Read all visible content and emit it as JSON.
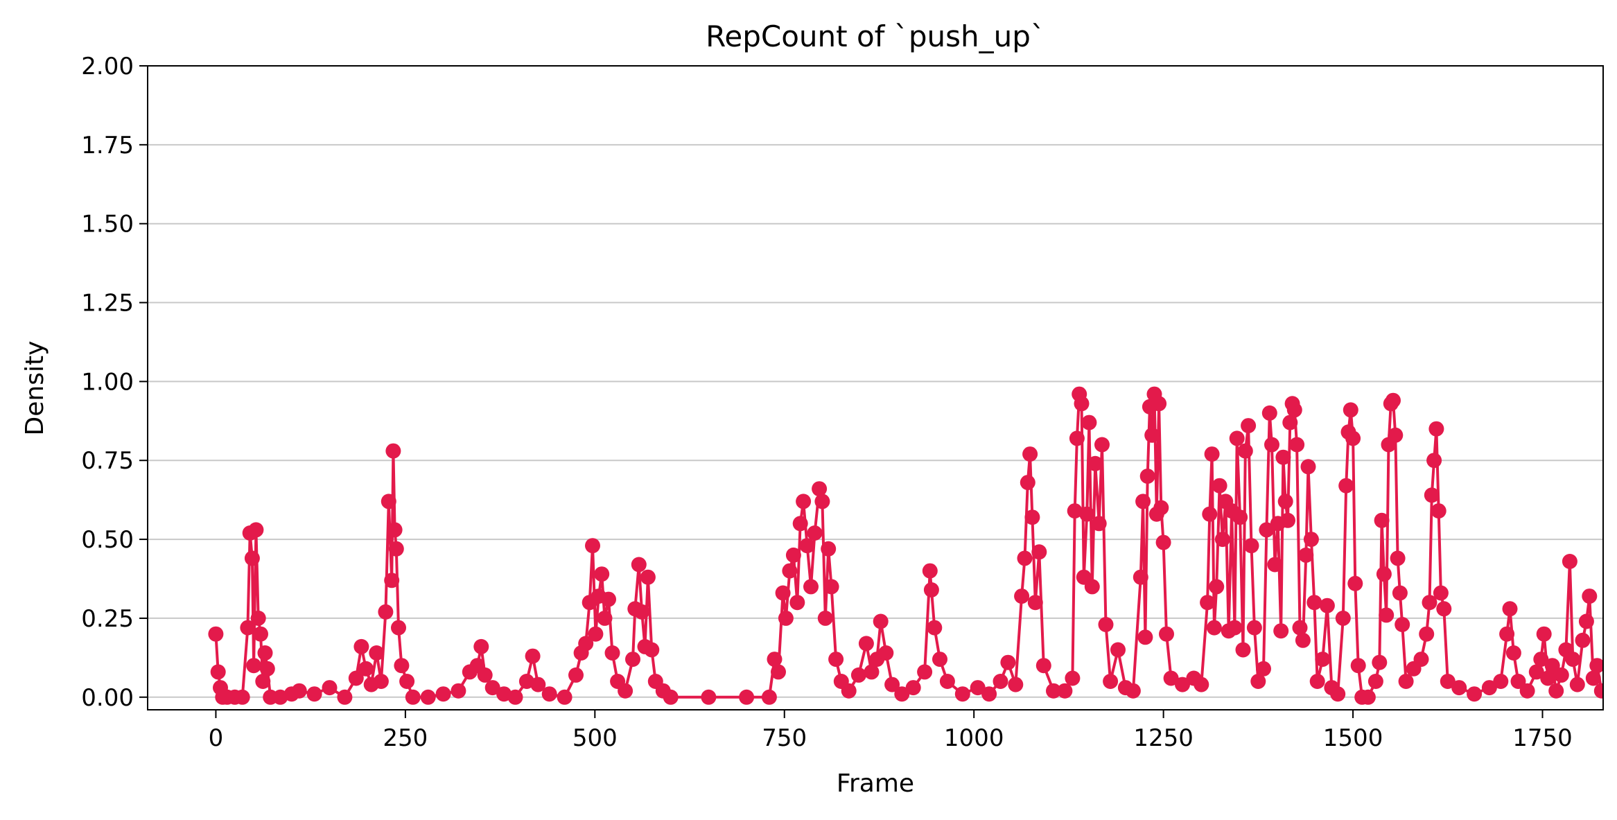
{
  "chart_data": {
    "type": "line",
    "title": "RepCount of `push_up`",
    "xlabel": "Frame",
    "ylabel": "Density",
    "xlim": [
      -90,
      1830
    ],
    "ylim": [
      -0.04,
      2.0
    ],
    "xticks": [
      0,
      250,
      500,
      750,
      1000,
      1250,
      1500,
      1750
    ],
    "xtick_labels": [
      "0",
      "250",
      "500",
      "750",
      "1000",
      "1250",
      "1500",
      "1750"
    ],
    "yticks": [
      0.0,
      0.25,
      0.5,
      0.75,
      1.0,
      1.25,
      1.5,
      1.75,
      2.0
    ],
    "ytick_labels": [
      "0.00",
      "0.25",
      "0.50",
      "0.75",
      "1.00",
      "1.25",
      "1.50",
      "1.75",
      "2.00"
    ],
    "grid": "y",
    "legend": "none",
    "series": [
      {
        "color": "#e31a4b",
        "marker": "circle",
        "points": [
          [
            0,
            0.2
          ],
          [
            3,
            0.08
          ],
          [
            6,
            0.03
          ],
          [
            9,
            0.0
          ],
          [
            15,
            0.0
          ],
          [
            25,
            0.0
          ],
          [
            35,
            0.0
          ],
          [
            42,
            0.22
          ],
          [
            45,
            0.52
          ],
          [
            48,
            0.44
          ],
          [
            50,
            0.1
          ],
          [
            53,
            0.53
          ],
          [
            56,
            0.25
          ],
          [
            59,
            0.2
          ],
          [
            62,
            0.05
          ],
          [
            65,
            0.14
          ],
          [
            68,
            0.09
          ],
          [
            72,
            0.0
          ],
          [
            85,
            0.0
          ],
          [
            100,
            0.01
          ],
          [
            110,
            0.02
          ],
          [
            130,
            0.01
          ],
          [
            150,
            0.03
          ],
          [
            170,
            0.0
          ],
          [
            185,
            0.06
          ],
          [
            192,
            0.16
          ],
          [
            198,
            0.09
          ],
          [
            205,
            0.04
          ],
          [
            212,
            0.14
          ],
          [
            218,
            0.05
          ],
          [
            224,
            0.27
          ],
          [
            228,
            0.62
          ],
          [
            232,
            0.37
          ],
          [
            234,
            0.78
          ],
          [
            236,
            0.53
          ],
          [
            238,
            0.47
          ],
          [
            241,
            0.22
          ],
          [
            245,
            0.1
          ],
          [
            252,
            0.05
          ],
          [
            260,
            0.0
          ],
          [
            280,
            0.0
          ],
          [
            300,
            0.01
          ],
          [
            320,
            0.02
          ],
          [
            335,
            0.08
          ],
          [
            345,
            0.1
          ],
          [
            350,
            0.16
          ],
          [
            355,
            0.07
          ],
          [
            365,
            0.03
          ],
          [
            380,
            0.01
          ],
          [
            395,
            0.0
          ],
          [
            410,
            0.05
          ],
          [
            418,
            0.13
          ],
          [
            425,
            0.04
          ],
          [
            440,
            0.01
          ],
          [
            460,
            0.0
          ],
          [
            475,
            0.07
          ],
          [
            482,
            0.14
          ],
          [
            488,
            0.17
          ],
          [
            493,
            0.3
          ],
          [
            497,
            0.48
          ],
          [
            501,
            0.2
          ],
          [
            505,
            0.32
          ],
          [
            509,
            0.39
          ],
          [
            513,
            0.25
          ],
          [
            518,
            0.31
          ],
          [
            523,
            0.14
          ],
          [
            530,
            0.05
          ],
          [
            540,
            0.02
          ],
          [
            550,
            0.12
          ],
          [
            553,
            0.28
          ],
          [
            558,
            0.42
          ],
          [
            562,
            0.27
          ],
          [
            566,
            0.16
          ],
          [
            570,
            0.38
          ],
          [
            575,
            0.15
          ],
          [
            580,
            0.05
          ],
          [
            590,
            0.02
          ],
          [
            600,
            0.0
          ],
          [
            650,
            0.0
          ],
          [
            700,
            0.0
          ],
          [
            730,
            0.0
          ],
          [
            737,
            0.12
          ],
          [
            742,
            0.08
          ],
          [
            748,
            0.33
          ],
          [
            752,
            0.25
          ],
          [
            757,
            0.4
          ],
          [
            762,
            0.45
          ],
          [
            767,
            0.3
          ],
          [
            771,
            0.55
          ],
          [
            775,
            0.62
          ],
          [
            780,
            0.48
          ],
          [
            785,
            0.35
          ],
          [
            790,
            0.52
          ],
          [
            796,
            0.66
          ],
          [
            800,
            0.62
          ],
          [
            804,
            0.25
          ],
          [
            808,
            0.47
          ],
          [
            812,
            0.35
          ],
          [
            818,
            0.12
          ],
          [
            825,
            0.05
          ],
          [
            835,
            0.02
          ],
          [
            848,
            0.07
          ],
          [
            858,
            0.17
          ],
          [
            865,
            0.08
          ],
          [
            872,
            0.12
          ],
          [
            877,
            0.24
          ],
          [
            884,
            0.14
          ],
          [
            892,
            0.04
          ],
          [
            905,
            0.01
          ],
          [
            920,
            0.03
          ],
          [
            935,
            0.08
          ],
          [
            942,
            0.4
          ],
          [
            944,
            0.34
          ],
          [
            948,
            0.22
          ],
          [
            955,
            0.12
          ],
          [
            965,
            0.05
          ],
          [
            985,
            0.01
          ],
          [
            1005,
            0.03
          ],
          [
            1020,
            0.01
          ],
          [
            1035,
            0.05
          ],
          [
            1045,
            0.11
          ],
          [
            1055,
            0.04
          ],
          [
            1063,
            0.32
          ],
          [
            1067,
            0.44
          ],
          [
            1071,
            0.68
          ],
          [
            1074,
            0.77
          ],
          [
            1077,
            0.57
          ],
          [
            1081,
            0.3
          ],
          [
            1086,
            0.46
          ],
          [
            1092,
            0.1
          ],
          [
            1105,
            0.02
          ],
          [
            1120,
            0.02
          ],
          [
            1130,
            0.06
          ],
          [
            1133,
            0.59
          ],
          [
            1136,
            0.82
          ],
          [
            1139,
            0.96
          ],
          [
            1142,
            0.93
          ],
          [
            1145,
            0.38
          ],
          [
            1149,
            0.58
          ],
          [
            1152,
            0.87
          ],
          [
            1156,
            0.35
          ],
          [
            1160,
            0.74
          ],
          [
            1165,
            0.55
          ],
          [
            1169,
            0.8
          ],
          [
            1174,
            0.23
          ],
          [
            1180,
            0.05
          ],
          [
            1190,
            0.15
          ],
          [
            1200,
            0.03
          ],
          [
            1210,
            0.02
          ],
          [
            1220,
            0.38
          ],
          [
            1223,
            0.62
          ],
          [
            1226,
            0.19
          ],
          [
            1229,
            0.7
          ],
          [
            1232,
            0.92
          ],
          [
            1235,
            0.83
          ],
          [
            1238,
            0.96
          ],
          [
            1241,
            0.58
          ],
          [
            1244,
            0.93
          ],
          [
            1247,
            0.6
          ],
          [
            1250,
            0.49
          ],
          [
            1254,
            0.2
          ],
          [
            1260,
            0.06
          ],
          [
            1275,
            0.04
          ],
          [
            1290,
            0.06
          ],
          [
            1300,
            0.04
          ],
          [
            1308,
            0.3
          ],
          [
            1311,
            0.58
          ],
          [
            1314,
            0.77
          ],
          [
            1317,
            0.22
          ],
          [
            1320,
            0.35
          ],
          [
            1324,
            0.67
          ],
          [
            1328,
            0.5
          ],
          [
            1332,
            0.62
          ],
          [
            1336,
            0.21
          ],
          [
            1340,
            0.59
          ],
          [
            1344,
            0.22
          ],
          [
            1347,
            0.82
          ],
          [
            1351,
            0.57
          ],
          [
            1355,
            0.15
          ],
          [
            1358,
            0.78
          ],
          [
            1362,
            0.86
          ],
          [
            1366,
            0.48
          ],
          [
            1370,
            0.22
          ],
          [
            1375,
            0.05
          ],
          [
            1382,
            0.09
          ],
          [
            1386,
            0.53
          ],
          [
            1390,
            0.9
          ],
          [
            1393,
            0.8
          ],
          [
            1397,
            0.42
          ],
          [
            1401,
            0.55
          ],
          [
            1405,
            0.21
          ],
          [
            1408,
            0.76
          ],
          [
            1411,
            0.62
          ],
          [
            1414,
            0.56
          ],
          [
            1417,
            0.87
          ],
          [
            1420,
            0.93
          ],
          [
            1423,
            0.91
          ],
          [
            1426,
            0.8
          ],
          [
            1430,
            0.22
          ],
          [
            1434,
            0.18
          ],
          [
            1438,
            0.45
          ],
          [
            1441,
            0.73
          ],
          [
            1445,
            0.5
          ],
          [
            1449,
            0.3
          ],
          [
            1453,
            0.05
          ],
          [
            1460,
            0.12
          ],
          [
            1466,
            0.29
          ],
          [
            1472,
            0.03
          ],
          [
            1480,
            0.01
          ],
          [
            1487,
            0.25
          ],
          [
            1491,
            0.67
          ],
          [
            1494,
            0.84
          ],
          [
            1497,
            0.91
          ],
          [
            1500,
            0.82
          ],
          [
            1503,
            0.36
          ],
          [
            1507,
            0.1
          ],
          [
            1512,
            0.0
          ],
          [
            1520,
            0.0
          ],
          [
            1530,
            0.05
          ],
          [
            1535,
            0.11
          ],
          [
            1538,
            0.56
          ],
          [
            1541,
            0.39
          ],
          [
            1544,
            0.26
          ],
          [
            1547,
            0.8
          ],
          [
            1550,
            0.93
          ],
          [
            1553,
            0.94
          ],
          [
            1556,
            0.83
          ],
          [
            1559,
            0.44
          ],
          [
            1562,
            0.33
          ],
          [
            1565,
            0.23
          ],
          [
            1570,
            0.05
          ],
          [
            1580,
            0.09
          ],
          [
            1590,
            0.12
          ],
          [
            1597,
            0.2
          ],
          [
            1601,
            0.3
          ],
          [
            1604,
            0.64
          ],
          [
            1607,
            0.75
          ],
          [
            1610,
            0.85
          ],
          [
            1613,
            0.59
          ],
          [
            1616,
            0.33
          ],
          [
            1620,
            0.28
          ],
          [
            1625,
            0.05
          ],
          [
            1640,
            0.03
          ],
          [
            1660,
            0.01
          ],
          [
            1680,
            0.03
          ],
          [
            1695,
            0.05
          ],
          [
            1703,
            0.2
          ],
          [
            1707,
            0.28
          ],
          [
            1712,
            0.14
          ],
          [
            1718,
            0.05
          ],
          [
            1730,
            0.02
          ],
          [
            1742,
            0.08
          ],
          [
            1748,
            0.12
          ],
          [
            1752,
            0.2
          ],
          [
            1757,
            0.06
          ],
          [
            1763,
            0.1
          ],
          [
            1768,
            0.02
          ],
          [
            1775,
            0.07
          ],
          [
            1781,
            0.15
          ],
          [
            1786,
            0.43
          ],
          [
            1790,
            0.12
          ],
          [
            1796,
            0.04
          ],
          [
            1803,
            0.18
          ],
          [
            1808,
            0.24
          ],
          [
            1812,
            0.32
          ],
          [
            1817,
            0.06
          ],
          [
            1822,
            0.1
          ],
          [
            1828,
            0.02
          ]
        ]
      }
    ]
  }
}
